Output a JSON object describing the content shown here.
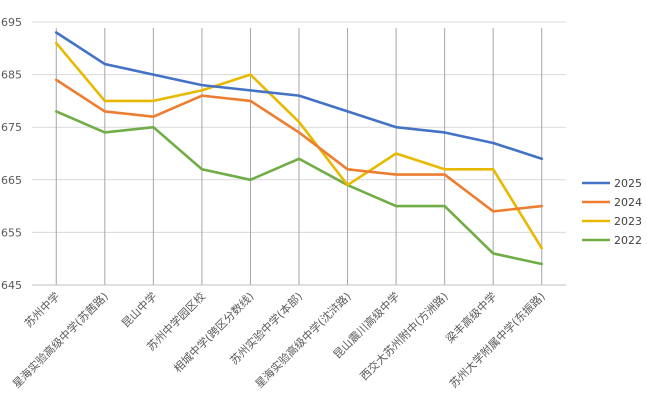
{
  "chart_data": {
    "type": "line",
    "categories": [
      "苏州中学",
      "星海实验高级中学(苏茜路)",
      "昆山中学",
      "苏州中学园区校",
      "相城中学(跨区分数线)",
      "苏州实验中学(本部)",
      "星海实验高级中学(沈浒路)",
      "昆山震川高级中学",
      "西交大苏州附中(方洲路)",
      "梁丰高级中学",
      "苏州大学附属中学(东振路)"
    ],
    "series": [
      {
        "name": "2025",
        "color": "#4472C4",
        "values": [
          693,
          687,
          685,
          683,
          682,
          681,
          678,
          675,
          674,
          672,
          669
        ]
      },
      {
        "name": "2024",
        "color": "#ED7D31",
        "values": [
          684,
          678,
          677,
          681,
          680,
          674,
          667,
          666,
          666,
          659,
          660
        ]
      },
      {
        "name": "2023",
        "color": "#E8B900",
        "values": [
          691,
          680,
          680,
          682,
          685,
          676,
          664,
          670,
          667,
          667,
          652
        ]
      },
      {
        "name": "2022",
        "color": "#70AD47",
        "values": [
          678,
          674,
          675,
          667,
          665,
          669,
          664,
          660,
          660,
          651,
          649
        ]
      }
    ],
    "y_ticks": [
      645,
      655,
      665,
      675,
      685,
      695
    ],
    "ylim": [
      645,
      695
    ],
    "grid": {
      "horizontal": true,
      "vertical": true
    },
    "legend_position": "right"
  }
}
